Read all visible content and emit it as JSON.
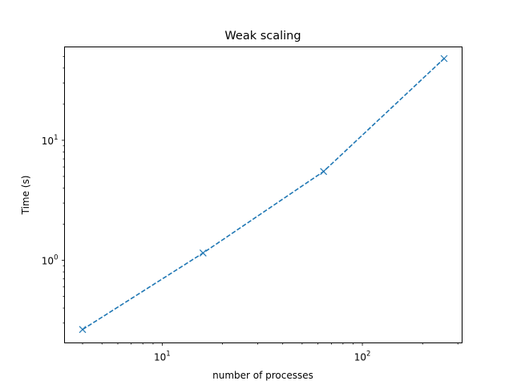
{
  "chart_data": {
    "type": "line",
    "title": "Weak scaling",
    "xlabel": "number of processes",
    "ylabel": "Time (s)",
    "xscale": "log",
    "yscale": "log",
    "xlim": [
      3.25,
      315
    ],
    "ylim": [
      0.205,
      60
    ],
    "x_ticks": [
      {
        "value": 10,
        "base": "10",
        "exp": "1"
      },
      {
        "value": 100,
        "base": "10",
        "exp": "2"
      }
    ],
    "y_ticks": [
      {
        "value": 1,
        "base": "10",
        "exp": "0"
      },
      {
        "value": 10,
        "base": "10",
        "exp": "1"
      }
    ],
    "grid": false,
    "line_style": "dashed",
    "marker": "x",
    "color": "#1f77b4",
    "series": [
      {
        "x": [
          4,
          16,
          64,
          256
        ],
        "y": [
          0.265,
          1.15,
          5.5,
          48
        ]
      }
    ]
  }
}
